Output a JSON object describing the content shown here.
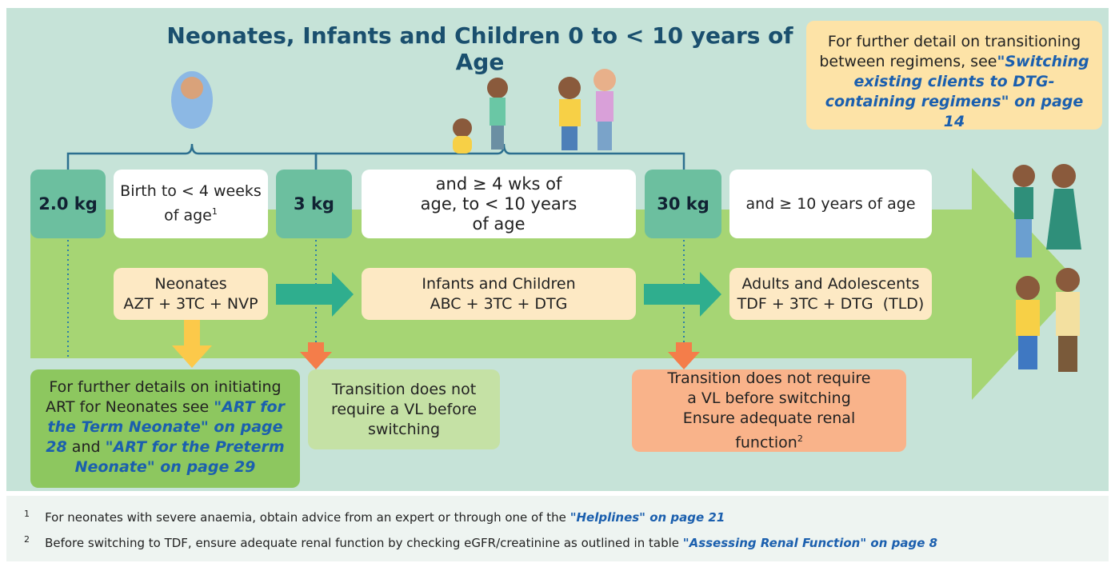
{
  "title": "Neonates, Infants and Children 0 to < 10 years of Age",
  "note": {
    "text": "For further detail on transitioning between regimens, see",
    "link": "\"Switching existing clients to DTG-containing regimens\" on page 14"
  },
  "weights": [
    "2.0 kg",
    "3 kg",
    "30 kg"
  ],
  "ages": [
    {
      "text": "Birth to < 4 weeks of age",
      "sup": "1"
    },
    {
      "text": "and ≥ 4 wks of age, to < 10 years of age"
    },
    {
      "text": "and ≥ 10 years of age"
    }
  ],
  "regimens": [
    {
      "group": "Neonates",
      "drugs": "AZT + 3TC + NVP"
    },
    {
      "group": "Infants and Children",
      "drugs": "ABC + 3TC + DTG"
    },
    {
      "group": "Adults and Adolescents",
      "drugs": "TDF + 3TC + DTG  (TLD)"
    }
  ],
  "neonate_box": {
    "text": "For further details on initiating ART for Neonates see",
    "link1": "\"ART for the Term Neonate\" on page 28",
    "joiner": "and",
    "link2": "\"ART for the Preterm  Neonate\" on page 29"
  },
  "transition_1": "Transition does not require a VL before switching",
  "transition_2": {
    "line1": "Transition does not require a VL before switching",
    "line2": "Ensure adequate renal function",
    "sup": "2"
  },
  "footnotes": [
    {
      "mark": "1",
      "text": "For neonates with severe anaemia, obtain advice from an expert or through one of the",
      "link": "\"Helplines\" on page 21"
    },
    {
      "mark": "2",
      "text": "Before switching to TDF, ensure adequate renal function by checking eGFR/creatinine as outlined in table",
      "link": "\"Assessing Renal Function\" on page 8"
    }
  ]
}
